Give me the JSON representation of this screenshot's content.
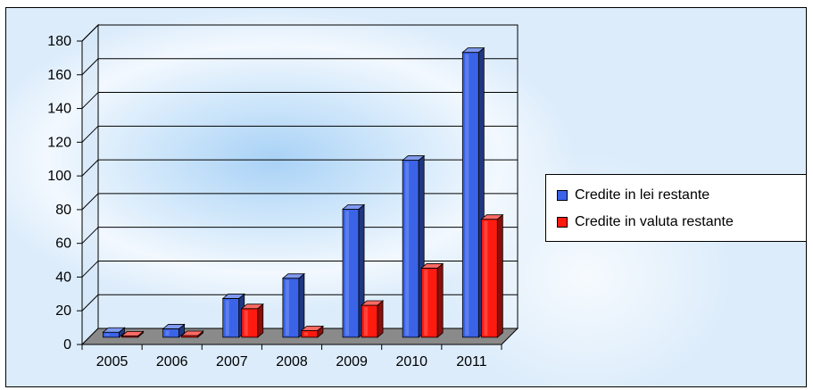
{
  "chart_data": {
    "type": "bar",
    "categories": [
      "2005",
      "2006",
      "2007",
      "2008",
      "2009",
      "2010",
      "2011"
    ],
    "series": [
      {
        "name": "Credite in lei restante",
        "color": "#3a63e8",
        "values": [
          3,
          5,
          23,
          35,
          76,
          105,
          169
        ]
      },
      {
        "name": "Credite in valuta restante",
        "color": "#ff1a10",
        "values": [
          0.5,
          1,
          17,
          4,
          19,
          41,
          70
        ]
      }
    ],
    "title": "",
    "xlabel": "",
    "ylabel": "",
    "ylim": [
      0,
      180
    ],
    "yticks": [
      0,
      20,
      40,
      60,
      80,
      100,
      120,
      140,
      160,
      180
    ],
    "grid": true,
    "legend_position": "right",
    "style": "3d"
  }
}
